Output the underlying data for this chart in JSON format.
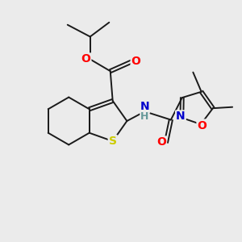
{
  "bg_color": "#ebebeb",
  "bond_color": "#1a1a1a",
  "bond_width": 1.4,
  "atom_colors": {
    "S": "#cccc00",
    "O": "#ff0000",
    "N": "#0000cc",
    "H": "#669999",
    "C": "#1a1a1a"
  },
  "font_size": 9,
  "fig_size": [
    3.0,
    3.0
  ],
  "dpi": 100
}
